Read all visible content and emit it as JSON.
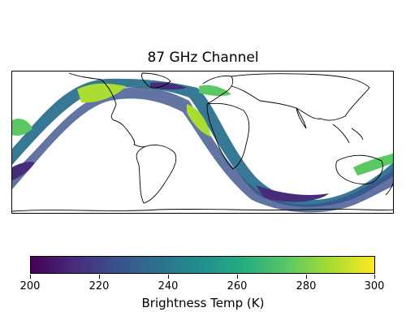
{
  "title": "87 GHz Channel",
  "colorbar": {
    "label": "Brightness Temp (K)",
    "min": 200,
    "max": 300,
    "ticks": [
      "200",
      "220",
      "240",
      "260",
      "280",
      "300"
    ],
    "colormap": "viridis",
    "colors": [
      "#440154",
      "#472c7a",
      "#3b518b",
      "#2c718e",
      "#21908d",
      "#27ad81",
      "#5cc863",
      "#aadc32",
      "#fde725"
    ]
  },
  "map": {
    "projection": "plate-carree",
    "extent": "global",
    "coastline_color": "#000000",
    "swath_description": "satellite swath of 87 GHz brightness temperatures"
  }
}
